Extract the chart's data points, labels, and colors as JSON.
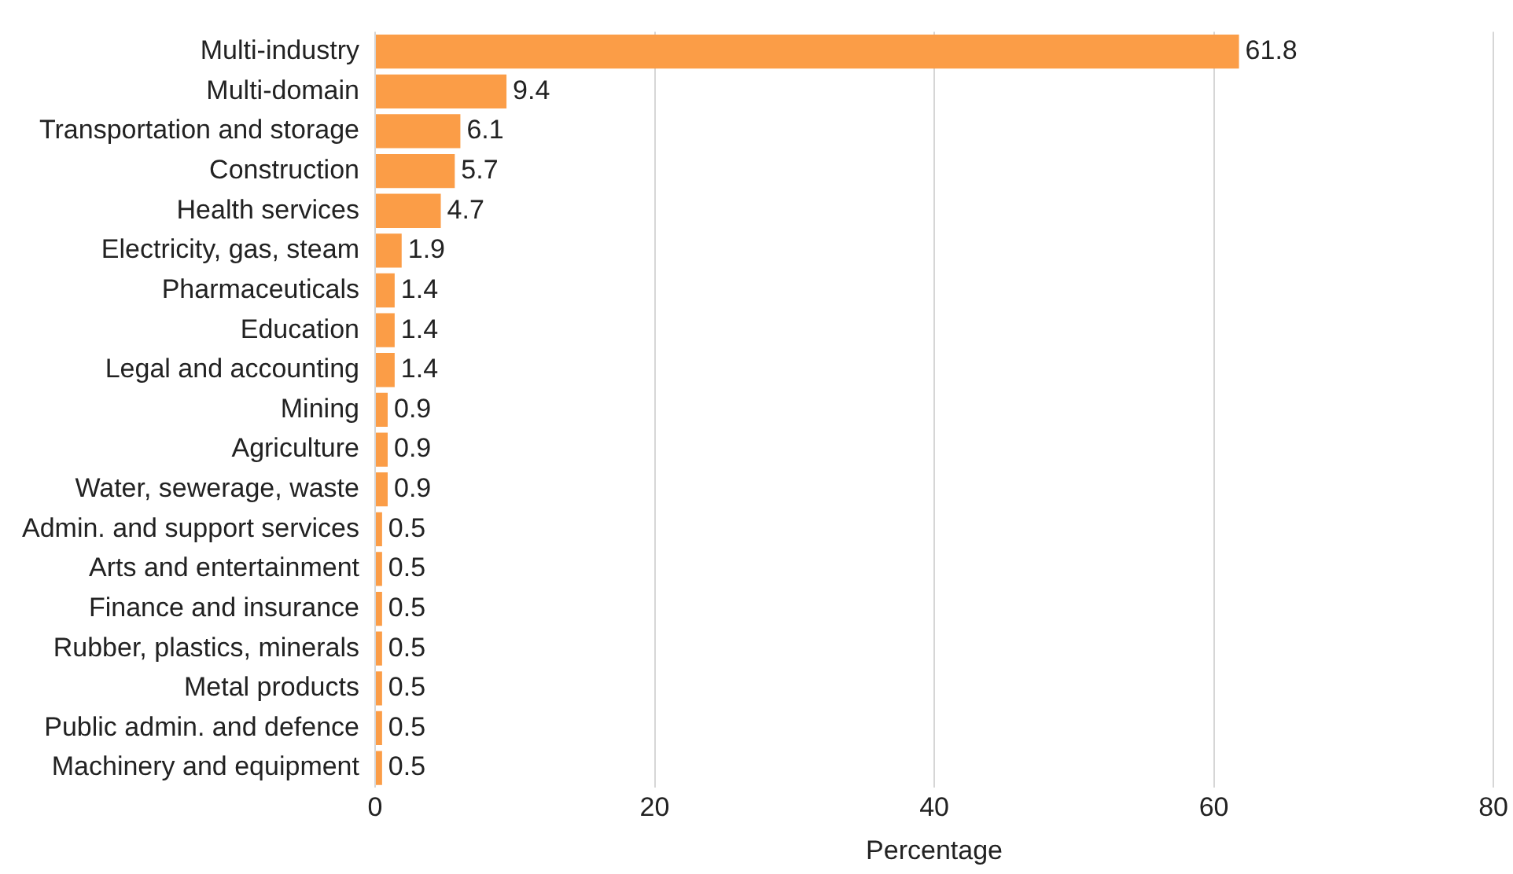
{
  "chart_data": {
    "type": "bar",
    "orientation": "horizontal",
    "xlabel": "Percentage",
    "categories": [
      "Multi-industry",
      "Multi-domain",
      "Transportation and storage",
      "Construction",
      "Health services",
      "Electricity, gas, steam",
      "Pharmaceuticals",
      "Education",
      "Legal and accounting",
      "Mining",
      "Agriculture",
      "Water, sewerage, waste",
      "Admin. and support services",
      "Arts and entertainment",
      "Finance and insurance",
      "Rubber, plastics, minerals",
      "Metal products",
      "Public admin. and defence",
      "Machinery and equipment"
    ],
    "values": [
      61.8,
      9.4,
      6.1,
      5.7,
      4.7,
      1.9,
      1.4,
      1.4,
      1.4,
      0.9,
      0.9,
      0.9,
      0.5,
      0.5,
      0.5,
      0.5,
      0.5,
      0.5,
      0.5
    ],
    "color": "#fb9d47",
    "xlim": [
      0,
      80
    ],
    "xticks": [
      0,
      20,
      40,
      60,
      80
    ],
    "grid": "x",
    "data_labels": true
  }
}
